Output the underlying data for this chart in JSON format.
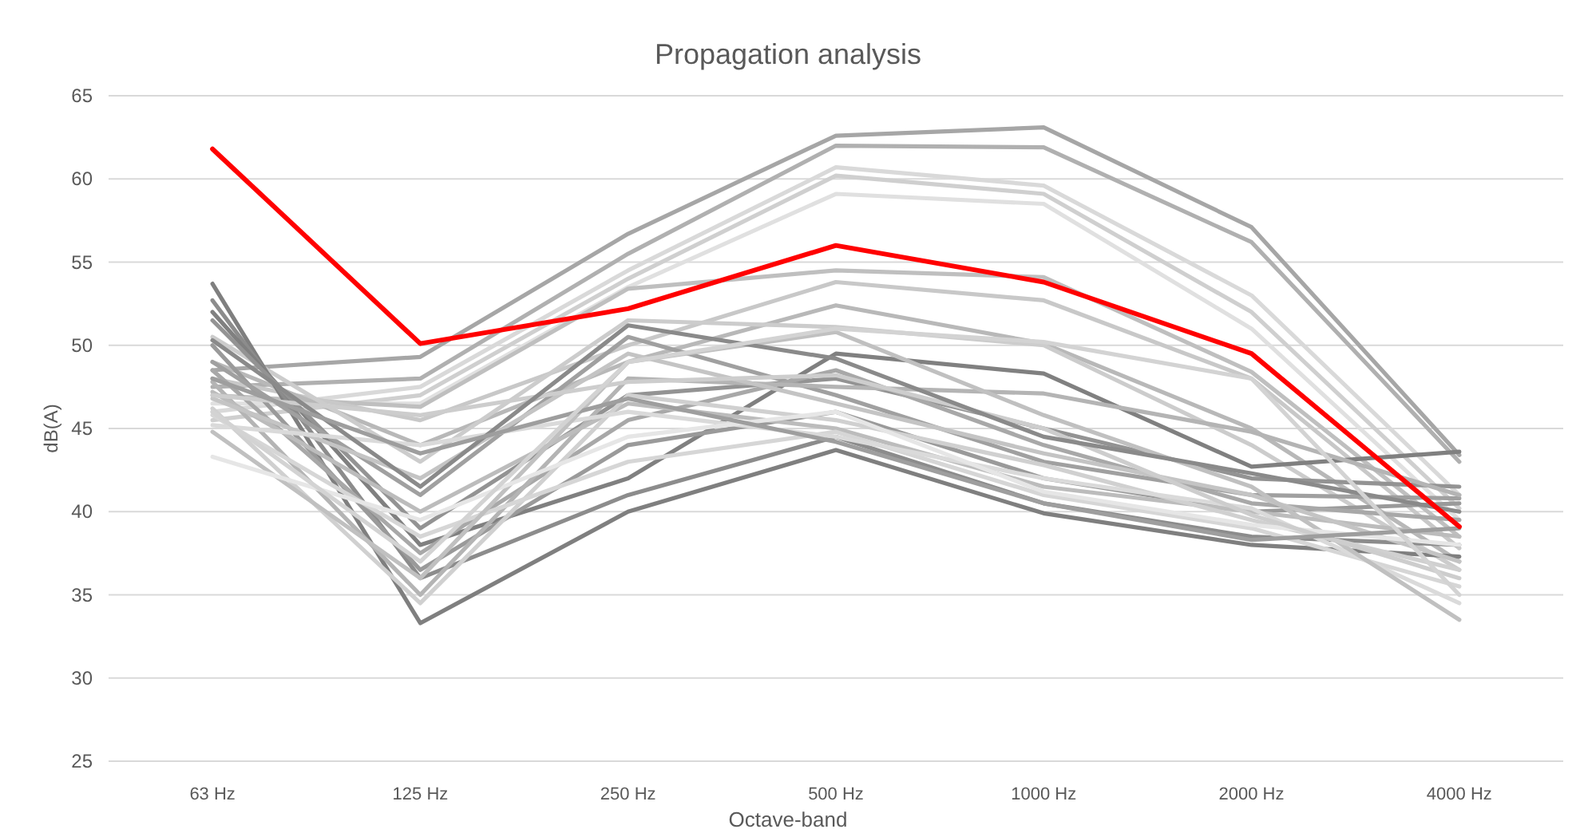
{
  "chart_data": {
    "type": "line",
    "title": "Propagation analysis",
    "xlabel": "Octave-band",
    "ylabel": "dB(A)",
    "categories": [
      "63 Hz",
      "125 Hz",
      "250 Hz",
      "500 Hz",
      "1000 Hz",
      "2000 Hz",
      "4000 Hz"
    ],
    "ylim": [
      25,
      65
    ],
    "yticks": [
      25,
      30,
      35,
      40,
      45,
      50,
      55,
      60,
      65
    ],
    "grid": "y",
    "marker": "none",
    "line_style": "solid",
    "series": [
      {
        "color": "#a6a6a6",
        "values": [
          48.5,
          49.3,
          56.7,
          62.6,
          63.1,
          57.1,
          43.4
        ]
      },
      {
        "color": "#b0b0b0",
        "values": [
          47.5,
          48.0,
          55.5,
          62.0,
          61.9,
          56.2,
          43.0
        ]
      },
      {
        "color": "#d9d9d9",
        "values": [
          46.0,
          47.5,
          54.5,
          60.7,
          59.6,
          53.0,
          41.0
        ]
      },
      {
        "color": "#cfcfcf",
        "values": [
          45.5,
          47.0,
          54.0,
          60.2,
          59.1,
          52.0,
          40.2
        ]
      },
      {
        "color": "#e0e0e0",
        "values": [
          46.5,
          46.5,
          53.5,
          59.1,
          58.5,
          51.0,
          39.5
        ]
      },
      {
        "color": "#bfbfbf",
        "values": [
          47.0,
          46.3,
          53.4,
          54.5,
          54.1,
          48.4,
          38.5
        ]
      },
      {
        "color": "#c8c8c8",
        "values": [
          48.0,
          45.5,
          50.0,
          53.8,
          52.7,
          48.0,
          37.8
        ]
      },
      {
        "color": "#b8b8b8",
        "values": [
          49.0,
          44.0,
          49.0,
          52.4,
          50.1,
          45.0,
          37.0
        ]
      },
      {
        "color": "#cccccc",
        "values": [
          50.5,
          43.0,
          51.5,
          51.1,
          50.0,
          44.0,
          36.5
        ]
      },
      {
        "color": "#7f7f7f",
        "values": [
          53.7,
          33.3,
          40.0,
          43.7,
          39.9,
          38.0,
          37.3
        ]
      },
      {
        "color": "#8c8c8c",
        "values": [
          52.7,
          36.0,
          41.0,
          44.5,
          40.5,
          38.5,
          38.0
        ]
      },
      {
        "color": "#808080",
        "values": [
          52.0,
          38.0,
          42.0,
          49.5,
          48.3,
          42.7,
          43.6
        ]
      },
      {
        "color": "#939393",
        "values": [
          51.5,
          39.0,
          47.0,
          48.0,
          45.0,
          42.0,
          41.5
        ]
      },
      {
        "color": "#9a9a9a",
        "values": [
          50.0,
          36.5,
          44.0,
          46.0,
          42.0,
          40.0,
          40.5
        ]
      },
      {
        "color": "#a0a0a0",
        "values": [
          49.0,
          41.0,
          50.5,
          47.0,
          43.0,
          41.0,
          40.8
        ]
      },
      {
        "color": "#a8a8a8",
        "values": [
          48.5,
          37.5,
          45.5,
          48.5,
          44.0,
          40.5,
          39.5
        ]
      },
      {
        "color": "#b4b4b4",
        "values": [
          47.8,
          35.0,
          48.0,
          47.5,
          47.1,
          44.8,
          41.0
        ]
      },
      {
        "color": "#bcbcbc",
        "values": [
          47.2,
          40.0,
          46.5,
          45.0,
          41.5,
          40.0,
          38.5
        ]
      },
      {
        "color": "#c4c4c4",
        "values": [
          46.8,
          42.0,
          49.5,
          46.5,
          43.5,
          41.0,
          37.0
        ]
      },
      {
        "color": "#d0d0d0",
        "values": [
          46.2,
          34.5,
          47.0,
          45.5,
          42.8,
          39.5,
          36.5
        ]
      },
      {
        "color": "#d6d6d6",
        "values": [
          45.8,
          38.5,
          43.0,
          44.8,
          41.0,
          39.0,
          35.5
        ]
      },
      {
        "color": "#dadada",
        "values": [
          45.2,
          44.0,
          46.0,
          44.5,
          42.0,
          40.2,
          34.5
        ]
      },
      {
        "color": "#c0c0c0",
        "values": [
          44.8,
          36.0,
          49.0,
          50.8,
          45.8,
          41.5,
          33.5
        ]
      },
      {
        "color": "#e6e6e6",
        "values": [
          43.3,
          39.5,
          44.5,
          46.0,
          41.2,
          39.2,
          38.0
        ]
      },
      {
        "color": "#cdcdcd",
        "values": [
          47.0,
          45.8,
          47.8,
          48.2,
          45.0,
          39.8,
          36.0
        ]
      },
      {
        "color": "#8a8a8a",
        "values": [
          50.3,
          41.5,
          51.2,
          49.2,
          44.5,
          42.3,
          40.0
        ]
      },
      {
        "color": "#9e9e9e",
        "values": [
          48.0,
          43.5,
          46.8,
          44.2,
          40.5,
          38.3,
          39.0
        ]
      },
      {
        "color": "#d3d3d3",
        "values": [
          46.0,
          37.0,
          49.0,
          51.0,
          50.2,
          48.0,
          35.0
        ]
      },
      {
        "color": "#ff0000",
        "values": [
          61.8,
          50.1,
          52.2,
          56.0,
          53.8,
          49.5,
          39.1
        ]
      }
    ]
  }
}
